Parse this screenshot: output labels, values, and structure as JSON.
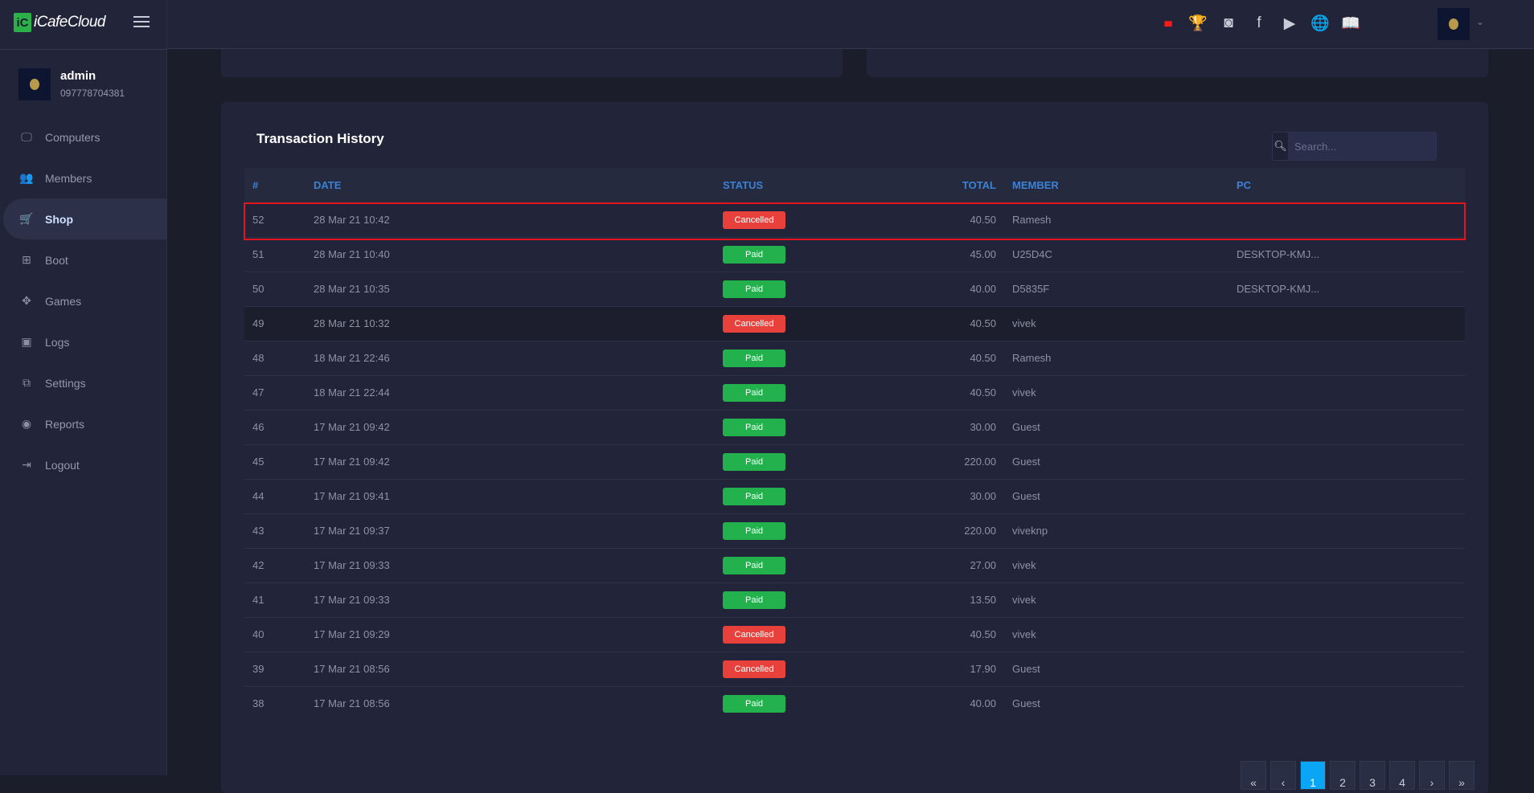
{
  "app": {
    "logo_mark": "iC",
    "logo_text": "iCafeCloud"
  },
  "profile": {
    "name": "admin",
    "phone": "097778704381"
  },
  "sidebar": {
    "items": [
      {
        "label": "Computers",
        "icon": "monitor-icon",
        "glyph": "🖵"
      },
      {
        "label": "Members",
        "icon": "users-icon",
        "glyph": "👥"
      },
      {
        "label": "Shop",
        "icon": "cart-icon",
        "glyph": "🛒",
        "active": true
      },
      {
        "label": "Boot",
        "icon": "windows-icon",
        "glyph": "⊞"
      },
      {
        "label": "Games",
        "icon": "gamepad-icon",
        "glyph": "✥"
      },
      {
        "label": "Logs",
        "icon": "calendar-icon",
        "glyph": "▣"
      },
      {
        "label": "Settings",
        "icon": "settings-icon",
        "glyph": "⧉"
      },
      {
        "label": "Reports",
        "icon": "reports-icon",
        "glyph": "◉"
      },
      {
        "label": "Logout",
        "icon": "logout-icon",
        "glyph": "⇥"
      }
    ]
  },
  "topbar": {
    "icons": [
      {
        "name": "ranking-icon",
        "glyph": "▮▮▮",
        "color": "#ff1a1a"
      },
      {
        "name": "trophy-icon",
        "glyph": "🏆",
        "color": "#ffd600"
      },
      {
        "name": "discord-icon",
        "glyph": "◙",
        "color": "#c9ccd6"
      },
      {
        "name": "facebook-icon",
        "glyph": "f",
        "color": "#c9ccd6"
      },
      {
        "name": "youtube-icon",
        "glyph": "▶",
        "color": "#c9ccd6"
      },
      {
        "name": "globe-icon",
        "glyph": "🌐",
        "color": "#c9ccd6"
      },
      {
        "name": "book-icon",
        "glyph": "📖",
        "color": "#c9ccd6"
      }
    ]
  },
  "transactions": {
    "title": "Transaction History",
    "search_placeholder": "Search...",
    "columns": [
      "#",
      "DATE",
      "STATUS",
      "TOTAL",
      "MEMBER",
      "PC"
    ],
    "status_colors": {
      "Cancelled": "#e8413b",
      "Paid": "#22b14c"
    },
    "rows": [
      {
        "id": "52",
        "date": "28 Mar 21 10:42",
        "status": "Cancelled",
        "total": "40.50",
        "member": "Ramesh",
        "pc": ""
      },
      {
        "id": "51",
        "date": "28 Mar 21 10:40",
        "status": "Paid",
        "total": "45.00",
        "member": "U25D4C",
        "pc": "DESKTOP-KMJ..."
      },
      {
        "id": "50",
        "date": "28 Mar 21 10:35",
        "status": "Paid",
        "total": "40.00",
        "member": "D5835F",
        "pc": "DESKTOP-KMJ..."
      },
      {
        "id": "49",
        "date": "28 Mar 21 10:32",
        "status": "Cancelled",
        "total": "40.50",
        "member": "vivek",
        "pc": ""
      },
      {
        "id": "48",
        "date": "18 Mar 21 22:46",
        "status": "Paid",
        "total": "40.50",
        "member": "Ramesh",
        "pc": ""
      },
      {
        "id": "47",
        "date": "18 Mar 21 22:44",
        "status": "Paid",
        "total": "40.50",
        "member": "vivek",
        "pc": ""
      },
      {
        "id": "46",
        "date": "17 Mar 21 09:42",
        "status": "Paid",
        "total": "30.00",
        "member": "Guest",
        "pc": ""
      },
      {
        "id": "45",
        "date": "17 Mar 21 09:42",
        "status": "Paid",
        "total": "220.00",
        "member": "Guest",
        "pc": ""
      },
      {
        "id": "44",
        "date": "17 Mar 21 09:41",
        "status": "Paid",
        "total": "30.00",
        "member": "Guest",
        "pc": ""
      },
      {
        "id": "43",
        "date": "17 Mar 21 09:37",
        "status": "Paid",
        "total": "220.00",
        "member": "viveknp",
        "pc": ""
      },
      {
        "id": "42",
        "date": "17 Mar 21 09:33",
        "status": "Paid",
        "total": "27.00",
        "member": "vivek",
        "pc": ""
      },
      {
        "id": "41",
        "date": "17 Mar 21 09:33",
        "status": "Paid",
        "total": "13.50",
        "member": "vivek",
        "pc": ""
      },
      {
        "id": "40",
        "date": "17 Mar 21 09:29",
        "status": "Cancelled",
        "total": "40.50",
        "member": "vivek",
        "pc": ""
      },
      {
        "id": "39",
        "date": "17 Mar 21 08:56",
        "status": "Cancelled",
        "total": "17.90",
        "member": "Guest",
        "pc": ""
      },
      {
        "id": "38",
        "date": "17 Mar 21 08:56",
        "status": "Paid",
        "total": "40.00",
        "member": "Guest",
        "pc": ""
      }
    ]
  },
  "pagination": {
    "items": [
      "«",
      "‹",
      "1",
      "2",
      "3",
      "4",
      "›",
      "»"
    ],
    "current": "1"
  }
}
